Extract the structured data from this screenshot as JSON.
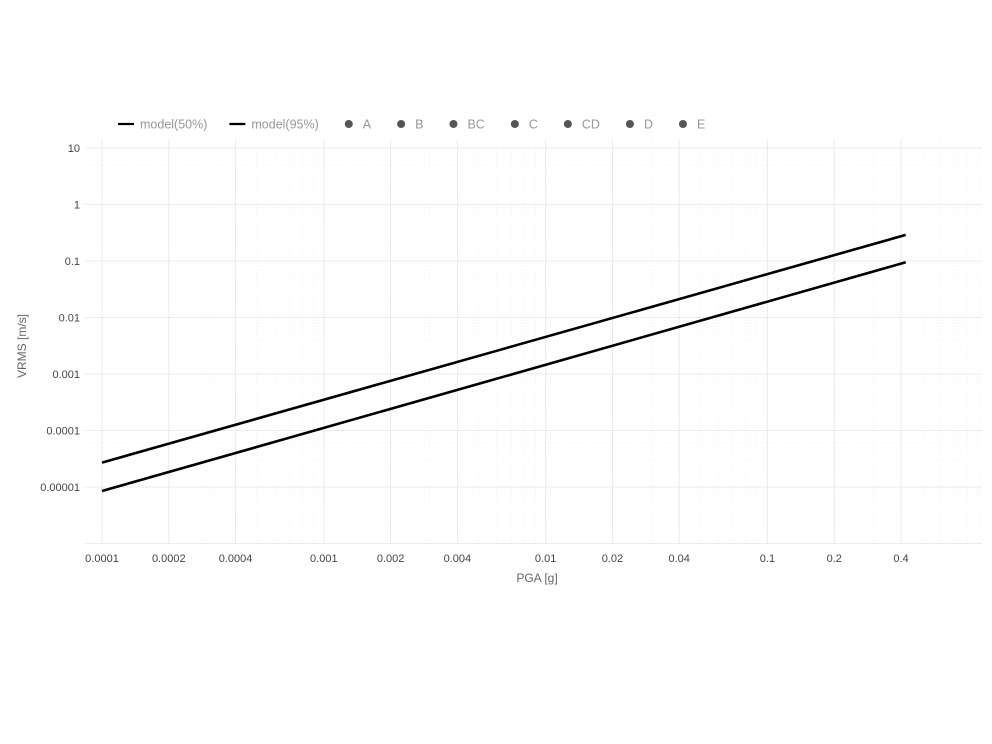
{
  "chart_data": {
    "type": "line",
    "title": "",
    "xlabel": "PGA [g]",
    "ylabel": "VRMS [m/s]",
    "x_scale": "log",
    "y_scale": "log",
    "xlim": [
      0.0001,
      0.42
    ],
    "ylim": [
      1e-06,
      10
    ],
    "grid": true,
    "legend_position": "top-left",
    "x_ticks": [
      {
        "value": 0.0001,
        "label": "0.0001"
      },
      {
        "value": 0.0002,
        "label": "0.0002"
      },
      {
        "value": 0.0004,
        "label": "0.0004"
      },
      {
        "value": 0.001,
        "label": "0.001"
      },
      {
        "value": 0.002,
        "label": "0.002"
      },
      {
        "value": 0.004,
        "label": "0.004"
      },
      {
        "value": 0.01,
        "label": "0.01"
      },
      {
        "value": 0.02,
        "label": "0.02"
      },
      {
        "value": 0.04,
        "label": "0.04"
      },
      {
        "value": 0.1,
        "label": "0.1"
      },
      {
        "value": 0.2,
        "label": "0.2"
      },
      {
        "value": 0.4,
        "label": "0.4"
      }
    ],
    "y_ticks": [
      {
        "value": 10,
        "label": "10"
      },
      {
        "value": 1,
        "label": "1"
      },
      {
        "value": 0.1,
        "label": "0.1"
      },
      {
        "value": 0.01,
        "label": "0.01"
      },
      {
        "value": 0.001,
        "label": "0.001"
      },
      {
        "value": 0.0001,
        "label": "0.0001"
      },
      {
        "value": 1e-05,
        "label": "0.00001"
      }
    ],
    "series": [
      {
        "name": "model(50%)",
        "kind": "line",
        "color": "#000000",
        "x": [
          0.0001,
          0.42
        ],
        "y": [
          8.5e-06,
          0.095
        ]
      },
      {
        "name": "model(95%)",
        "kind": "line",
        "color": "#000000",
        "x": [
          0.0001,
          0.42
        ],
        "y": [
          2.7e-05,
          0.29
        ]
      },
      {
        "name": "A",
        "kind": "point",
        "color": "#555555",
        "x": [],
        "y": []
      },
      {
        "name": "B",
        "kind": "point",
        "color": "#555555",
        "x": [],
        "y": []
      },
      {
        "name": "BC",
        "kind": "point",
        "color": "#555555",
        "x": [],
        "y": []
      },
      {
        "name": "C",
        "kind": "point",
        "color": "#555555",
        "x": [],
        "y": []
      },
      {
        "name": "CD",
        "kind": "point",
        "color": "#555555",
        "x": [],
        "y": []
      },
      {
        "name": "D",
        "kind": "point",
        "color": "#555555",
        "x": [],
        "y": []
      },
      {
        "name": "E",
        "kind": "point",
        "color": "#555555",
        "x": [],
        "y": []
      }
    ]
  }
}
